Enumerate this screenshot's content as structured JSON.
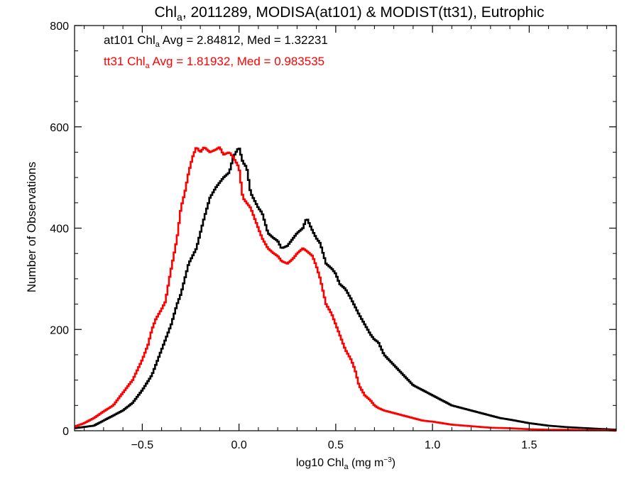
{
  "chart_data": {
    "type": "line",
    "title": {
      "main": "Chl",
      "sub": "a",
      "rest": ", 2011289, MODISA(at101) & MODIST(tt31), Eutrophic"
    },
    "xlabel": {
      "pre": "log10 Chl",
      "sub": "a",
      "mid": " (mg m",
      "sup": "−3",
      "post": ")"
    },
    "ylabel": "Number of Observations",
    "xlim": [
      -0.85,
      1.95
    ],
    "ylim": [
      0,
      800
    ],
    "xticks": [
      -0.5,
      0.0,
      0.5,
      1.0,
      1.5
    ],
    "xtick_labels": [
      "−0.5",
      "0.0",
      "0.5",
      "1.0",
      "1.5"
    ],
    "yticks": [
      0,
      200,
      400,
      600,
      800
    ],
    "ytick_labels": [
      "0",
      "200",
      "400",
      "600",
      "800"
    ],
    "grid": false,
    "legend_position": "top-left",
    "series": [
      {
        "name": "at101",
        "color": "#000000",
        "annotation": {
          "pre": "at101 Chl",
          "sub": "a",
          "post": " Avg = 2.84812, Med = 1.32231"
        },
        "points": [
          [
            -0.85,
            5
          ],
          [
            -0.75,
            10
          ],
          [
            -0.7,
            20
          ],
          [
            -0.65,
            30
          ],
          [
            -0.6,
            40
          ],
          [
            -0.55,
            55
          ],
          [
            -0.5,
            80
          ],
          [
            -0.45,
            110
          ],
          [
            -0.4,
            160
          ],
          [
            -0.37,
            190
          ],
          [
            -0.35,
            210
          ],
          [
            -0.32,
            250
          ],
          [
            -0.3,
            270
          ],
          [
            -0.28,
            300
          ],
          [
            -0.26,
            330
          ],
          [
            -0.24,
            345
          ],
          [
            -0.22,
            360
          ],
          [
            -0.2,
            390
          ],
          [
            -0.18,
            420
          ],
          [
            -0.15,
            460
          ],
          [
            -0.12,
            480
          ],
          [
            -0.1,
            490
          ],
          [
            -0.08,
            500
          ],
          [
            -0.05,
            510
          ],
          [
            -0.03,
            540
          ],
          [
            0.0,
            560
          ],
          [
            0.02,
            530
          ],
          [
            0.04,
            520
          ],
          [
            0.06,
            470
          ],
          [
            0.08,
            455
          ],
          [
            0.1,
            440
          ],
          [
            0.12,
            430
          ],
          [
            0.15,
            390
          ],
          [
            0.18,
            380
          ],
          [
            0.2,
            375
          ],
          [
            0.22,
            360
          ],
          [
            0.25,
            365
          ],
          [
            0.28,
            380
          ],
          [
            0.3,
            390
          ],
          [
            0.33,
            400
          ],
          [
            0.35,
            420
          ],
          [
            0.38,
            395
          ],
          [
            0.4,
            380
          ],
          [
            0.42,
            370
          ],
          [
            0.45,
            330
          ],
          [
            0.48,
            320
          ],
          [
            0.5,
            310
          ],
          [
            0.52,
            290
          ],
          [
            0.55,
            280
          ],
          [
            0.58,
            260
          ],
          [
            0.6,
            245
          ],
          [
            0.62,
            230
          ],
          [
            0.65,
            210
          ],
          [
            0.68,
            190
          ],
          [
            0.7,
            180
          ],
          [
            0.72,
            175
          ],
          [
            0.75,
            150
          ],
          [
            0.8,
            130
          ],
          [
            0.85,
            110
          ],
          [
            0.9,
            90
          ],
          [
            0.95,
            80
          ],
          [
            1.0,
            70
          ],
          [
            1.05,
            60
          ],
          [
            1.1,
            50
          ],
          [
            1.15,
            45
          ],
          [
            1.2,
            40
          ],
          [
            1.25,
            35
          ],
          [
            1.3,
            30
          ],
          [
            1.35,
            25
          ],
          [
            1.4,
            22
          ],
          [
            1.5,
            15
          ],
          [
            1.6,
            10
          ],
          [
            1.7,
            7
          ],
          [
            1.8,
            5
          ],
          [
            1.9,
            3
          ],
          [
            1.95,
            2
          ]
        ]
      },
      {
        "name": "tt31",
        "color": "#ff0000",
        "annotation": {
          "pre": "tt31 Chl",
          "sub": "a",
          "post": " Avg = 1.81932, Med = 0.983535"
        },
        "points": [
          [
            -0.85,
            8
          ],
          [
            -0.8,
            15
          ],
          [
            -0.75,
            25
          ],
          [
            -0.7,
            38
          ],
          [
            -0.65,
            50
          ],
          [
            -0.6,
            75
          ],
          [
            -0.55,
            100
          ],
          [
            -0.5,
            140
          ],
          [
            -0.47,
            170
          ],
          [
            -0.45,
            200
          ],
          [
            -0.43,
            220
          ],
          [
            -0.4,
            240
          ],
          [
            -0.38,
            255
          ],
          [
            -0.36,
            300
          ],
          [
            -0.34,
            340
          ],
          [
            -0.32,
            380
          ],
          [
            -0.3,
            440
          ],
          [
            -0.28,
            470
          ],
          [
            -0.26,
            510
          ],
          [
            -0.24,
            540
          ],
          [
            -0.22,
            560
          ],
          [
            -0.2,
            550
          ],
          [
            -0.18,
            560
          ],
          [
            -0.15,
            550
          ],
          [
            -0.12,
            555
          ],
          [
            -0.1,
            560
          ],
          [
            -0.08,
            545
          ],
          [
            -0.05,
            550
          ],
          [
            -0.03,
            540
          ],
          [
            0.0,
            520
          ],
          [
            0.02,
            460
          ],
          [
            0.04,
            450
          ],
          [
            0.06,
            440
          ],
          [
            0.08,
            420
          ],
          [
            0.1,
            400
          ],
          [
            0.12,
            380
          ],
          [
            0.15,
            360
          ],
          [
            0.18,
            350
          ],
          [
            0.2,
            345
          ],
          [
            0.22,
            335
          ],
          [
            0.25,
            330
          ],
          [
            0.28,
            340
          ],
          [
            0.3,
            350
          ],
          [
            0.33,
            360
          ],
          [
            0.35,
            355
          ],
          [
            0.38,
            345
          ],
          [
            0.4,
            325
          ],
          [
            0.42,
            300
          ],
          [
            0.45,
            250
          ],
          [
            0.48,
            230
          ],
          [
            0.5,
            210
          ],
          [
            0.52,
            190
          ],
          [
            0.55,
            160
          ],
          [
            0.58,
            140
          ],
          [
            0.6,
            120
          ],
          [
            0.62,
            90
          ],
          [
            0.65,
            70
          ],
          [
            0.68,
            60
          ],
          [
            0.7,
            50
          ],
          [
            0.72,
            45
          ],
          [
            0.75,
            40
          ],
          [
            0.8,
            35
          ],
          [
            0.85,
            30
          ],
          [
            0.9,
            25
          ],
          [
            0.95,
            20
          ],
          [
            1.0,
            18
          ],
          [
            1.05,
            15
          ],
          [
            1.1,
            12
          ],
          [
            1.2,
            9
          ],
          [
            1.3,
            6
          ],
          [
            1.4,
            5
          ],
          [
            1.5,
            3
          ],
          [
            1.6,
            2
          ],
          [
            1.7,
            2
          ],
          [
            1.8,
            1
          ],
          [
            1.9,
            1
          ],
          [
            1.95,
            0
          ]
        ]
      }
    ]
  }
}
